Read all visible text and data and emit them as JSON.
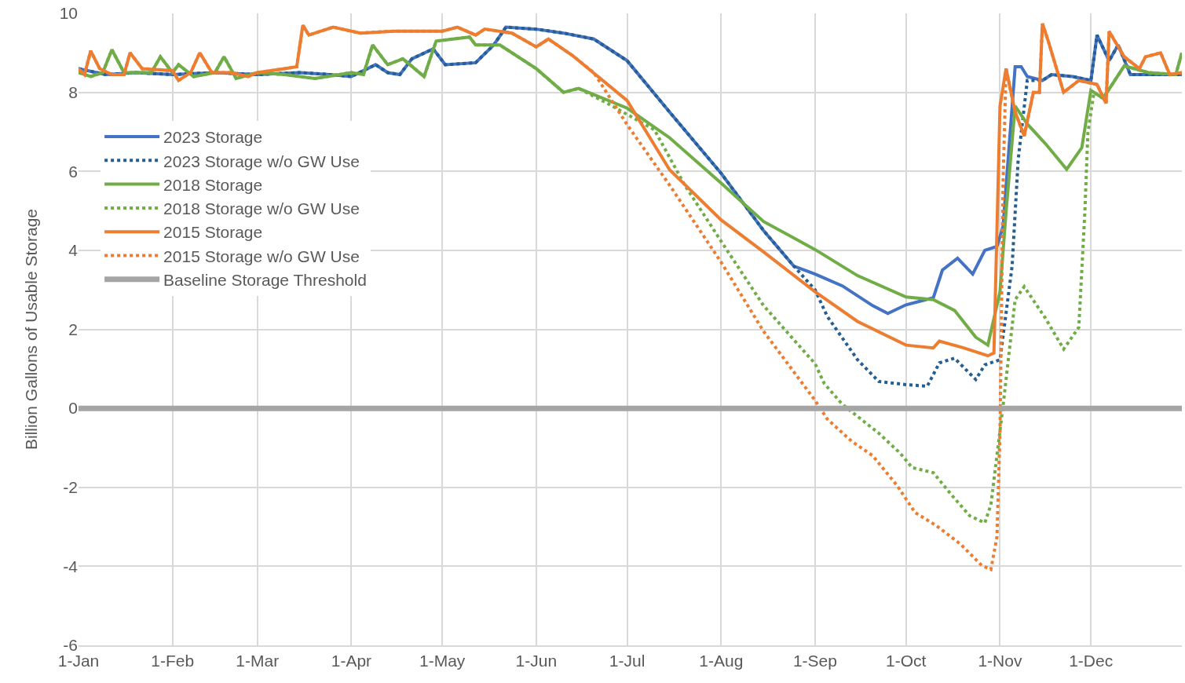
{
  "chart_data": {
    "type": "line",
    "ylabel": "Billion Gallons of Usable Storage",
    "xlim": [
      "--01-01",
      "--12-31"
    ],
    "xticks": [
      {
        "value": "--01-01",
        "label": "1-Jan"
      },
      {
        "value": "--02-01",
        "label": "1-Feb"
      },
      {
        "value": "--03-01",
        "label": "1-Mar"
      },
      {
        "value": "--04-01",
        "label": "1-Apr"
      },
      {
        "value": "--05-01",
        "label": "1-May"
      },
      {
        "value": "--06-01",
        "label": "1-Jun"
      },
      {
        "value": "--07-01",
        "label": "1-Jul"
      },
      {
        "value": "--08-01",
        "label": "1-Aug"
      },
      {
        "value": "--09-01",
        "label": "1-Sep"
      },
      {
        "value": "--10-01",
        "label": "1-Oct"
      },
      {
        "value": "--11-01",
        "label": "1-Nov"
      },
      {
        "value": "--12-01",
        "label": "1-Dec"
      }
    ],
    "ylim": [
      -6,
      10
    ],
    "yticks": [
      -6,
      -4,
      -2,
      0,
      2,
      4,
      6,
      8,
      10
    ],
    "grid": true,
    "legend": "left",
    "marker": "none",
    "series": [
      {
        "name": "2023 Storage",
        "color": "#4472c4",
        "line_style": "solid",
        "x": [
          "--01-01",
          "--01-10",
          "--01-20",
          "--02-01",
          "--02-15",
          "--03-01",
          "--03-15",
          "--03-25",
          "--04-01",
          "--04-09",
          "--04-13",
          "--04-17",
          "--04-21",
          "--04-28",
          "--05-02",
          "--05-12",
          "--05-18",
          "--05-22",
          "--06-01",
          "--06-10",
          "--06-20",
          "--07-01",
          "--07-15",
          "--08-01",
          "--08-15",
          "--08-25",
          "--09-01",
          "--09-10",
          "--09-20",
          "--09-25",
          "--10-01",
          "--10-10",
          "--10-13",
          "--10-18",
          "--10-23",
          "--10-27",
          "--10-31",
          "--11-02",
          "--11-06",
          "--11-08",
          "--11-10",
          "--11-15",
          "--11-18",
          "--11-25",
          "--12-01",
          "--12-03",
          "--12-07",
          "--12-10",
          "--12-14",
          "--12-31"
        ],
        "values": [
          8.6,
          8.45,
          8.5,
          8.45,
          8.5,
          8.45,
          8.5,
          8.45,
          8.4,
          8.7,
          8.5,
          8.45,
          8.85,
          9.1,
          8.7,
          8.75,
          9.2,
          9.65,
          9.6,
          9.5,
          9.35,
          8.8,
          7.5,
          5.95,
          4.5,
          3.6,
          3.4,
          3.1,
          2.6,
          2.4,
          2.62,
          2.8,
          3.5,
          3.8,
          3.4,
          4.0,
          4.1,
          4.6,
          8.65,
          8.65,
          8.4,
          8.3,
          8.45,
          8.4,
          8.3,
          9.45,
          8.8,
          9.2,
          8.45,
          8.45
        ]
      },
      {
        "name": "2023 Storage w/o GW Use",
        "color": "#255e91",
        "line_style": "dotted",
        "x": [
          "--01-01",
          "--01-10",
          "--01-20",
          "--02-01",
          "--02-15",
          "--03-01",
          "--03-15",
          "--03-25",
          "--04-01",
          "--04-09",
          "--04-13",
          "--04-17",
          "--04-21",
          "--04-28",
          "--05-02",
          "--05-12",
          "--05-18",
          "--05-22",
          "--06-01",
          "--06-10",
          "--06-20",
          "--07-01",
          "--07-15",
          "--08-01",
          "--08-15",
          "--08-25",
          "--09-01",
          "--09-05",
          "--09-15",
          "--09-22",
          "--10-01",
          "--10-08",
          "--10-12",
          "--10-17",
          "--10-24",
          "--10-27",
          "--11-01",
          "--11-05",
          "--11-07",
          "--11-10",
          "--11-15",
          "--11-18",
          "--11-25",
          "--12-01",
          "--12-03",
          "--12-07",
          "--12-10",
          "--12-14",
          "--12-31"
        ],
        "values": [
          8.6,
          8.45,
          8.5,
          8.45,
          8.5,
          8.45,
          8.5,
          8.45,
          8.4,
          8.7,
          8.5,
          8.45,
          8.85,
          9.1,
          8.7,
          8.75,
          9.2,
          9.65,
          9.6,
          9.5,
          9.35,
          8.8,
          7.5,
          5.95,
          4.5,
          3.6,
          3.0,
          2.33,
          1.23,
          0.68,
          0.6,
          0.56,
          1.15,
          1.27,
          0.73,
          1.1,
          1.23,
          3.6,
          6.3,
          8.3,
          8.3,
          8.45,
          8.4,
          8.3,
          9.45,
          8.8,
          9.2,
          8.45,
          8.45
        ]
      },
      {
        "name": "2018 Storage",
        "color": "#70ad47",
        "line_style": "solid",
        "x": [
          "--01-01",
          "--01-05",
          "--01-09",
          "--01-12",
          "--01-16",
          "--01-25",
          "--01-28",
          "--02-01",
          "--02-03",
          "--02-08",
          "--02-15",
          "--02-18",
          "--02-22",
          "--03-01",
          "--03-10",
          "--03-20",
          "--04-01",
          "--04-05",
          "--04-08",
          "--04-13",
          "--04-18",
          "--04-25",
          "--04-29",
          "--05-10",
          "--05-12",
          "--05-20",
          "--06-01",
          "--06-10",
          "--06-15",
          "--07-01",
          "--07-15",
          "--08-01",
          "--08-15",
          "--09-01",
          "--09-15",
          "--10-01",
          "--10-10",
          "--10-17",
          "--10-24",
          "--10-28",
          "--11-01",
          "--11-03",
          "--11-06",
          "--11-10",
          "--11-16",
          "--11-23",
          "--11-28",
          "--12-01",
          "--12-05",
          "--12-08",
          "--12-12",
          "--12-20",
          "--12-29",
          "--12-31"
        ],
        "values": [
          8.5,
          8.4,
          8.5,
          9.08,
          8.5,
          8.5,
          8.9,
          8.5,
          8.7,
          8.4,
          8.5,
          8.9,
          8.35,
          8.5,
          8.45,
          8.35,
          8.5,
          8.45,
          9.2,
          8.7,
          8.85,
          8.4,
          9.3,
          9.4,
          9.2,
          9.2,
          8.6,
          8.0,
          8.1,
          7.6,
          6.85,
          5.7,
          4.73,
          4.02,
          3.36,
          2.82,
          2.75,
          2.48,
          1.8,
          1.6,
          2.95,
          4.97,
          7.65,
          7.2,
          6.7,
          6.05,
          6.6,
          8.05,
          7.85,
          8.2,
          8.67,
          8.5,
          8.45,
          9.0
        ]
      },
      {
        "name": "2018 Storage w/o GW Use",
        "color": "#70ad47",
        "line_style": "dotted",
        "x": [
          "--01-01",
          "--01-05",
          "--01-09",
          "--01-12",
          "--01-16",
          "--01-25",
          "--01-28",
          "--02-01",
          "--02-03",
          "--02-08",
          "--02-15",
          "--02-18",
          "--02-22",
          "--03-01",
          "--03-10",
          "--03-20",
          "--04-01",
          "--04-05",
          "--04-08",
          "--04-13",
          "--04-18",
          "--04-25",
          "--04-29",
          "--05-10",
          "--05-12",
          "--05-20",
          "--06-01",
          "--06-10",
          "--06-15",
          "--06-25",
          "--07-10",
          "--07-20",
          "--08-01",
          "--08-15",
          "--09-01",
          "--09-04",
          "--09-10",
          "--09-22",
          "--09-29",
          "--10-03",
          "--10-10",
          "--10-16",
          "--10-22",
          "--10-27",
          "--10-29",
          "--11-02",
          "--11-06",
          "--11-09",
          "--11-16",
          "--11-22",
          "--11-27",
          "--11-29",
          "--11-30",
          "--12-02",
          "--12-05",
          "--12-08",
          "--12-12",
          "--12-20",
          "--12-29",
          "--12-31"
        ],
        "values": [
          8.5,
          8.4,
          8.5,
          9.08,
          8.5,
          8.5,
          8.9,
          8.5,
          8.7,
          8.4,
          8.5,
          8.9,
          8.35,
          8.5,
          8.45,
          8.35,
          8.5,
          8.45,
          9.2,
          8.7,
          8.85,
          8.4,
          9.3,
          9.4,
          9.2,
          9.2,
          8.6,
          8.0,
          8.1,
          7.7,
          7.05,
          5.65,
          4.23,
          2.6,
          1.13,
          0.63,
          0.1,
          -0.63,
          -1.13,
          -1.5,
          -1.63,
          -2.19,
          -2.72,
          -2.9,
          -2.44,
          0.06,
          2.75,
          3.08,
          2.28,
          1.5,
          2.05,
          4.97,
          6.98,
          8.0,
          7.85,
          8.2,
          8.67,
          8.5,
          8.45,
          9.0
        ]
      },
      {
        "name": "2015 Storage",
        "color": "#ed7d31",
        "line_style": "solid",
        "x": [
          "--01-01",
          "--01-03",
          "--01-05",
          "--01-08",
          "--01-12",
          "--01-16",
          "--01-18",
          "--01-22",
          "--02-01",
          "--02-03",
          "--02-07",
          "--02-10",
          "--02-14",
          "--02-20",
          "--02-26",
          "--03-01",
          "--03-10",
          "--03-14",
          "--03-16",
          "--03-18",
          "--03-26",
          "--04-04",
          "--04-15",
          "--05-01",
          "--05-06",
          "--05-12",
          "--05-15",
          "--05-24",
          "--06-01",
          "--06-05",
          "--06-13",
          "--07-01",
          "--07-15",
          "--08-01",
          "--08-15",
          "--09-01",
          "--09-15",
          "--10-01",
          "--10-10",
          "--10-12",
          "--10-20",
          "--10-28",
          "--10-30",
          "--11-01",
          "--11-03",
          "--11-06",
          "--11-09",
          "--11-12",
          "--11-14",
          "--11-15",
          "--11-17",
          "--11-22",
          "--11-27",
          "--12-03",
          "--12-06",
          "--12-07",
          "--12-12",
          "--12-17",
          "--12-19",
          "--12-24",
          "--12-27",
          "--12-31"
        ],
        "values": [
          8.6,
          8.45,
          9.05,
          8.6,
          8.45,
          8.45,
          9.0,
          8.6,
          8.55,
          8.3,
          8.5,
          9.0,
          8.5,
          8.5,
          8.4,
          8.5,
          8.6,
          8.65,
          9.7,
          9.45,
          9.65,
          9.5,
          9.55,
          9.55,
          9.65,
          9.45,
          9.6,
          9.5,
          9.15,
          9.35,
          8.93,
          7.79,
          6.04,
          4.77,
          3.96,
          2.95,
          2.2,
          1.6,
          1.53,
          1.7,
          1.53,
          1.33,
          1.4,
          7.65,
          8.6,
          7.5,
          6.9,
          8.0,
          8.0,
          9.74,
          9.28,
          8.0,
          8.3,
          8.2,
          7.72,
          9.54,
          8.9,
          8.6,
          8.9,
          9.0,
          8.45,
          8.5
        ]
      },
      {
        "name": "2015 Storage w/o GW Use",
        "color": "#ed7d31",
        "line_style": "dotted",
        "x": [
          "--01-01",
          "--01-03",
          "--01-05",
          "--01-08",
          "--01-12",
          "--01-16",
          "--01-18",
          "--01-22",
          "--02-01",
          "--02-03",
          "--02-07",
          "--02-10",
          "--02-14",
          "--02-20",
          "--02-26",
          "--03-01",
          "--03-10",
          "--03-14",
          "--03-16",
          "--03-18",
          "--03-26",
          "--04-04",
          "--04-15",
          "--05-01",
          "--05-06",
          "--05-12",
          "--05-15",
          "--05-24",
          "--06-01",
          "--06-05",
          "--06-13",
          "--06-20",
          "--07-01",
          "--07-15",
          "--08-01",
          "--08-15",
          "--09-01",
          "--09-05",
          "--09-13",
          "--09-20",
          "--09-28",
          "--10-04",
          "--10-11",
          "--10-19",
          "--10-26",
          "--10-29",
          "--10-31",
          "--11-01",
          "--11-02",
          "--11-03",
          "--11-06",
          "--11-09",
          "--11-12",
          "--11-14",
          "--11-15",
          "--11-17",
          "--11-22",
          "--11-27",
          "--12-03",
          "--12-06",
          "--12-07",
          "--12-12",
          "--12-17",
          "--12-19",
          "--12-24",
          "--12-27",
          "--12-31"
        ],
        "values": [
          8.6,
          8.45,
          9.05,
          8.6,
          8.45,
          8.45,
          9.0,
          8.6,
          8.55,
          8.3,
          8.5,
          9.0,
          8.5,
          8.5,
          8.4,
          8.5,
          8.6,
          8.65,
          9.7,
          9.45,
          9.65,
          9.5,
          9.55,
          9.55,
          9.65,
          9.45,
          9.6,
          9.5,
          9.15,
          9.35,
          8.93,
          8.5,
          7.18,
          5.65,
          3.7,
          1.95,
          0.2,
          -0.27,
          -0.83,
          -1.2,
          -1.95,
          -2.64,
          -2.97,
          -3.44,
          -3.98,
          -4.08,
          -3.25,
          -0.6,
          5.65,
          8.6,
          7.5,
          6.9,
          8.0,
          8.0,
          9.74,
          9.28,
          8.0,
          8.3,
          8.2,
          7.72,
          9.54,
          8.9,
          8.6,
          8.9,
          9.0,
          8.45,
          8.5
        ]
      }
    ],
    "ref_lines": [
      {
        "axis": "y",
        "value": 0,
        "label": "Baseline Storage Threshold",
        "color": "#a5a5a5",
        "line_style": "solid"
      }
    ]
  }
}
